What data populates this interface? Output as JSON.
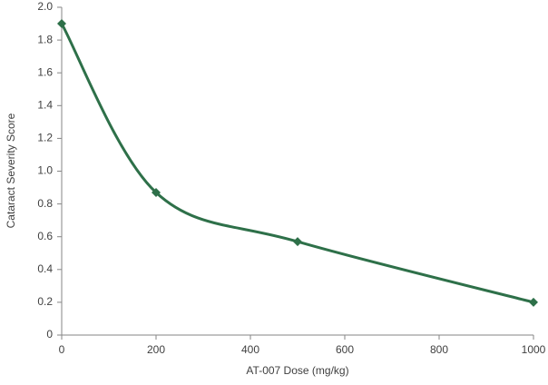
{
  "chart_data": {
    "type": "line",
    "x_label": "AT-007 Dose (mg/kg)",
    "y_label": "Cataract Severity Score",
    "x": [
      0,
      200,
      500,
      1000
    ],
    "series": [
      {
        "color": "#2e7049",
        "values": [
          1.9,
          0.87,
          0.57,
          0.2
        ]
      }
    ],
    "smooth": true,
    "xlim": [
      0,
      1000
    ],
    "xticks": [
      0,
      200,
      400,
      600,
      800,
      1000
    ],
    "ylim": [
      0,
      2
    ],
    "yticks": [
      0,
      0.2,
      0.4,
      0.6,
      0.8,
      {
        "value": 1,
        "label": "1.0"
      },
      1.2,
      1.4,
      1.6,
      1.8,
      {
        "value": 2,
        "label": "2.0"
      }
    ],
    "grid": false
  }
}
